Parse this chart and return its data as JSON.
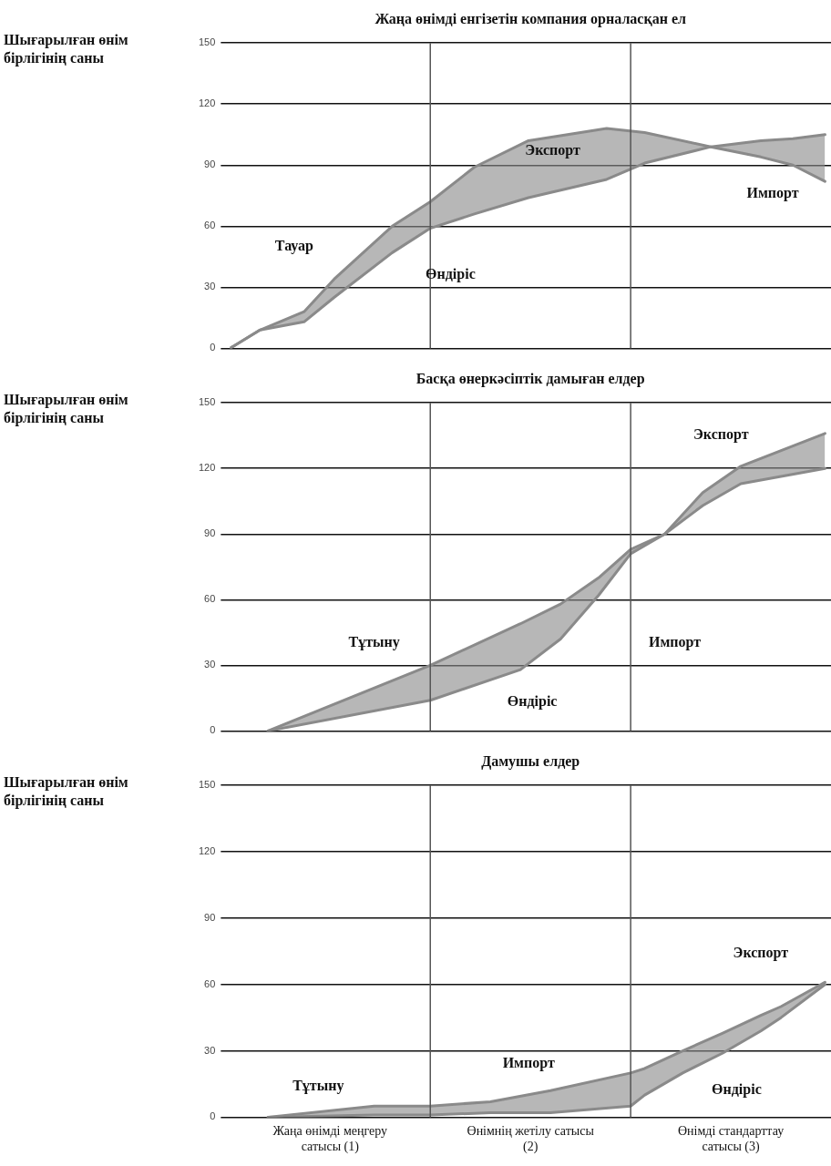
{
  "chart_data": [
    {
      "type": "line",
      "title": "Жаңа өнімді енгізетін компания орналасқан ел",
      "ylabel": "Шығарылған өнім бірлігінің саны",
      "xlim": [
        0,
        3
      ],
      "ylim": [
        0,
        150
      ],
      "yticks": [
        0,
        30,
        60,
        90,
        120,
        150
      ],
      "grid": "y",
      "tick_labels": "y",
      "ref_lines": [
        {
          "axis": "x",
          "value": 1
        },
        {
          "axis": "x",
          "value": 2
        }
      ],
      "series": [
        {
          "type": "line",
          "color": "#8a8a8a",
          "x": [
            0,
            0.15,
            0.37,
            0.52,
            0.81,
            1.0,
            1.22,
            1.49,
            1.88,
            2.07,
            2.4,
            2.65,
            2.81,
            2.97
          ],
          "values": [
            0,
            9,
            18,
            34,
            60,
            72,
            89,
            102,
            108,
            106,
            99,
            94,
            90,
            82
          ]
        },
        {
          "type": "line",
          "color": "#8a8a8a",
          "x": [
            0,
            0.15,
            0.37,
            0.52,
            0.81,
            1.0,
            1.22,
            1.49,
            1.88,
            2.07,
            2.4,
            2.65,
            2.81,
            2.97
          ],
          "values": [
            0,
            9,
            13,
            25,
            47,
            59,
            66,
            74,
            83,
            91,
            99,
            102,
            103,
            105
          ],
          "lower": [
            0,
            9,
            13,
            25,
            47,
            59,
            66,
            74,
            83,
            91,
            99,
            94,
            90,
            82
          ],
          "upper": [
            0,
            9,
            18,
            34,
            60,
            72,
            89,
            102,
            108,
            106,
            99,
            102,
            103,
            105
          ]
        }
      ],
      "annotations": [
        "Тауар",
        "Өндіріс",
        "Экспорт",
        "Импорт"
      ]
    },
    {
      "type": "line",
      "title": "Басқа өнеркәсіптік дамыған елдер",
      "ylabel": "Шығарылған өнім бірлігінің саны",
      "xlim": [
        0,
        3
      ],
      "ylim": [
        0,
        150
      ],
      "yticks": [
        0,
        30,
        60,
        90,
        120,
        150
      ],
      "grid": "y",
      "tick_labels": "y",
      "ref_lines": [
        {
          "axis": "x",
          "value": 1
        },
        {
          "axis": "x",
          "value": 2
        }
      ],
      "series": [
        {
          "type": "line",
          "color": "#8a8a8a",
          "x": [
            0.19,
            1.0,
            1.45,
            1.65,
            1.84,
            2.0,
            2.17,
            2.36,
            2.55,
            2.97
          ],
          "values": [
            0,
            14,
            28,
            42,
            62,
            81,
            90,
            109,
            121,
            136
          ]
        },
        {
          "type": "line",
          "color": "#8a8a8a",
          "x": [
            0.19,
            1.0,
            1.45,
            1.65,
            1.84,
            2.0,
            2.17,
            2.36,
            2.55,
            2.97
          ],
          "values": [
            0,
            30,
            49,
            58,
            70,
            83,
            90,
            103,
            113,
            120
          ],
          "lower": [
            0,
            14,
            28,
            42,
            62,
            81,
            90,
            103,
            113,
            120
          ],
          "upper": [
            0,
            30,
            49,
            58,
            70,
            83,
            90,
            109,
            121,
            136
          ]
        }
      ],
      "annotations": [
        "Экспорт",
        "Тұтыну",
        "Импорт",
        "Өндіріс"
      ]
    },
    {
      "type": "line",
      "title": "Дамушы елдер",
      "ylabel": "Шығарылған өнім бірлігінің саны",
      "xlim": [
        0,
        3
      ],
      "xticks": [
        {
          "value": 0.5,
          "label": "Жаңа өнімді меңгеру сатысы (1)"
        },
        {
          "value": 1.5,
          "label": "Өнімнің жетілу сатысы (2)"
        },
        {
          "value": 2.5,
          "label": "Өнімді стандарттау сатысы (3)"
        }
      ],
      "ylim": [
        0,
        150
      ],
      "yticks": [
        0,
        30,
        60,
        90,
        120,
        150
      ],
      "grid": "y",
      "ref_lines": [
        {
          "axis": "x",
          "value": 1
        },
        {
          "axis": "x",
          "value": 2
        }
      ],
      "series": [
        {
          "type": "line",
          "color": "#8a8a8a",
          "x": [
            0.19,
            0.72,
            1.0,
            1.3,
            1.6,
            2.0,
            2.07,
            2.26,
            2.46,
            2.65,
            2.75,
            2.97
          ],
          "values": [
            0,
            1,
            1,
            2,
            2,
            5,
            10,
            20,
            29,
            39,
            45,
            60
          ]
        },
        {
          "type": "line",
          "color": "#8a8a8a",
          "x": [
            0.19,
            0.72,
            1.0,
            1.3,
            1.6,
            2.0,
            2.07,
            2.26,
            2.46,
            2.65,
            2.75,
            2.97
          ],
          "values": [
            0,
            5,
            5,
            7,
            12,
            20,
            22,
            30,
            38,
            46,
            50,
            61
          ],
          "lower": [
            0,
            1,
            1,
            2,
            2,
            5,
            10,
            20,
            29,
            39,
            45,
            60
          ],
          "upper": [
            0,
            5,
            5,
            7,
            12,
            20,
            22,
            30,
            38,
            46,
            50,
            61
          ]
        }
      ],
      "annotations": [
        "Экспорт",
        "Тұтыну",
        "Импорт",
        "Өндіріс"
      ]
    }
  ]
}
